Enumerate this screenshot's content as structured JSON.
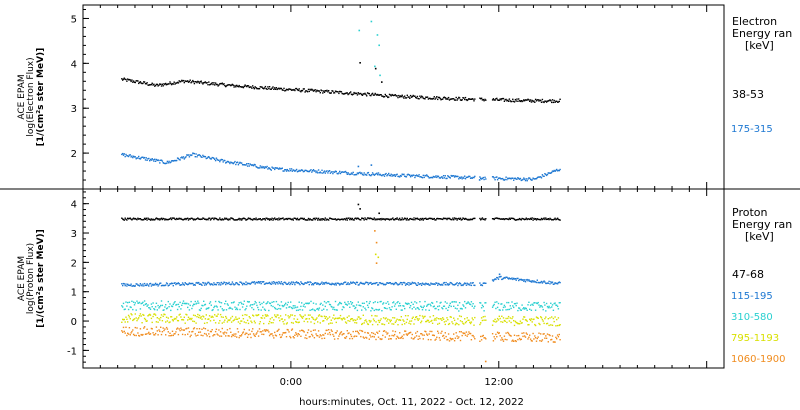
{
  "chart_data": [
    {
      "type": "scatter",
      "panel": "electron",
      "ylabel_lines": [
        "ACE EPAM",
        "log(Electron Flux)",
        "[1/(cm²s ster MeV)]"
      ],
      "ylim": [
        1.2,
        5.3
      ],
      "yticks": [
        2,
        3,
        4,
        5
      ],
      "legend_title": [
        "Electron",
        "Energy ran",
        "[keV]"
      ],
      "series": [
        {
          "name": "38-53",
          "color": "#000000",
          "key": [
            [
              -9.8,
              3.66
            ],
            [
              -8.6,
              3.58
            ],
            [
              -7.8,
              3.52
            ],
            [
              -6.2,
              3.62
            ],
            [
              -3.5,
              3.52
            ],
            [
              -0.5,
              3.44
            ],
            [
              3.0,
              3.36
            ],
            [
              6.0,
              3.28
            ],
            [
              10.0,
              3.22
            ],
            [
              14.0,
              3.18
            ],
            [
              15.5,
              3.18
            ]
          ]
        },
        {
          "name": "175-315",
          "color": "#1e78d2",
          "key": [
            [
              -9.8,
              1.98
            ],
            [
              -8.0,
              1.86
            ],
            [
              -7.2,
              1.8
            ],
            [
              -5.7,
              1.98
            ],
            [
              -4.0,
              1.84
            ],
            [
              -1.0,
              1.66
            ],
            [
              3.0,
              1.58
            ],
            [
              6.0,
              1.52
            ],
            [
              10.0,
              1.47
            ],
            [
              14.0,
              1.43
            ],
            [
              15.5,
              1.66
            ]
          ]
        }
      ]
    },
    {
      "type": "scatter",
      "panel": "proton",
      "ylabel_lines": [
        "ACE EPAM",
        "log(Proton Flux)",
        "[1/(cm²s ster MeV)]"
      ],
      "ylim": [
        -1.6,
        4.5
      ],
      "yticks": [
        -1,
        0,
        1,
        2,
        3,
        4
      ],
      "legend_title": [
        "Proton",
        "Energy ran",
        "[keV]"
      ],
      "series": [
        {
          "name": "47-68",
          "color": "#000000",
          "key": [
            [
              -9.8,
              3.5
            ],
            [
              15.5,
              3.5
            ]
          ]
        },
        {
          "name": "115-195",
          "color": "#1e78d2",
          "key": [
            [
              -9.8,
              1.25
            ],
            [
              -2.0,
              1.32
            ],
            [
              11.0,
              1.28
            ],
            [
              12.0,
              1.5
            ],
            [
              15.5,
              1.3
            ]
          ]
        },
        {
          "name": "310-580",
          "color": "#2ad0d0",
          "key": [
            [
              -9.8,
              0.55
            ],
            [
              15.5,
              0.52
            ]
          ]
        },
        {
          "name": "795-1193",
          "color": "#d8e000",
          "key": [
            [
              -9.8,
              0.12
            ],
            [
              15.5,
              0.02
            ]
          ]
        },
        {
          "name": "1060-1900",
          "color": "#f08c1e",
          "key": [
            [
              -9.8,
              -0.32
            ],
            [
              15.5,
              -0.55
            ]
          ]
        }
      ]
    }
  ],
  "x_axis": {
    "range_hours": [
      -12,
      25
    ],
    "ticks": [
      {
        "at": 0,
        "label": "0:00"
      },
      {
        "at": 12,
        "label": "12:00"
      }
    ],
    "label": "hours:minutes, Oct. 11, 2022 - Oct. 12, 2022"
  }
}
